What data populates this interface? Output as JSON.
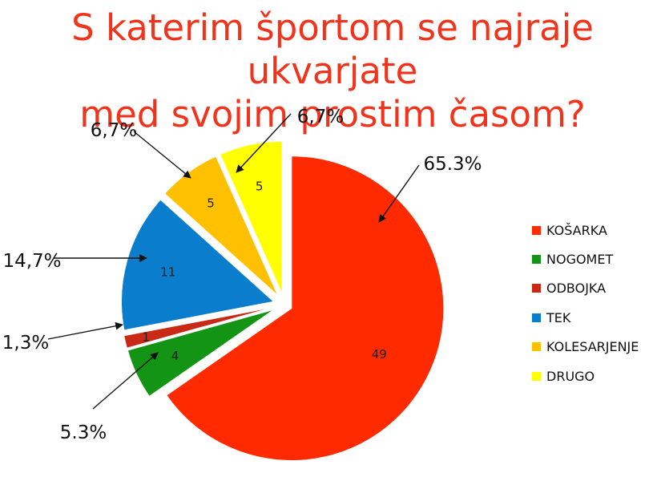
{
  "chart_data": {
    "type": "pie",
    "title_lines": [
      "S katerim športom se najraje ukvarjate",
      "med svojim prostim časom?"
    ],
    "start_angle_deg": 0,
    "slices": [
      {
        "name": "KOŠARKA",
        "value": 49,
        "label": "49",
        "percent_label": "65.3%",
        "color": "#ff2a00"
      },
      {
        "name": "NOGOMET",
        "value": 4,
        "label": "4",
        "percent_label": "5.3%",
        "color": "#149414"
      },
      {
        "name": "ODBOJKA",
        "value": 1,
        "label": "1",
        "percent_label": "1,3%",
        "color": "#c82a16"
      },
      {
        "name": "TEK",
        "value": 11,
        "label": "11",
        "percent_label": "14,7%",
        "color": "#0a7dcc"
      },
      {
        "name": "KOLESARJENJE",
        "value": 5,
        "label": "5",
        "percent_label": "6,7%",
        "color": "#ffc000"
      },
      {
        "name": "DRUGO",
        "value": 5,
        "label": "5",
        "percent_label": "6,7%",
        "color": "#ffff00"
      }
    ],
    "legend_position": "right"
  }
}
